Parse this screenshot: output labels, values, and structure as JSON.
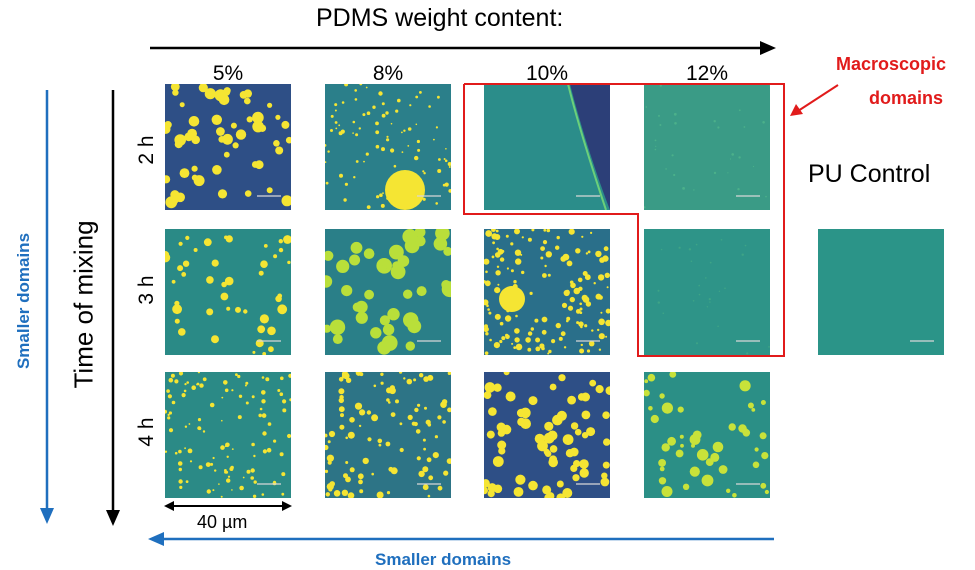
{
  "header": {
    "title": "PDMS weight content:"
  },
  "columns": [
    "5%",
    "8%",
    "10%",
    "12%"
  ],
  "rows": [
    "2 h",
    "3 h",
    "4 h"
  ],
  "side_labels": {
    "time_of_mixing": "Time of mixing",
    "smaller_domains_left": "Smaller domains",
    "smaller_domains_bottom": "Smaller domains"
  },
  "callout": {
    "line1": "Macroscopic",
    "line2": "domains"
  },
  "control_label": "PU Control",
  "scale_bar": "40 µm",
  "colors": {
    "background": "#2a8a86",
    "background_dark": "#2e4f86",
    "domain": "#f5e533",
    "highlight_box": "#e11b1b",
    "arrow_blue": "#1f6fbe",
    "arrow_black": "#000000"
  }
}
